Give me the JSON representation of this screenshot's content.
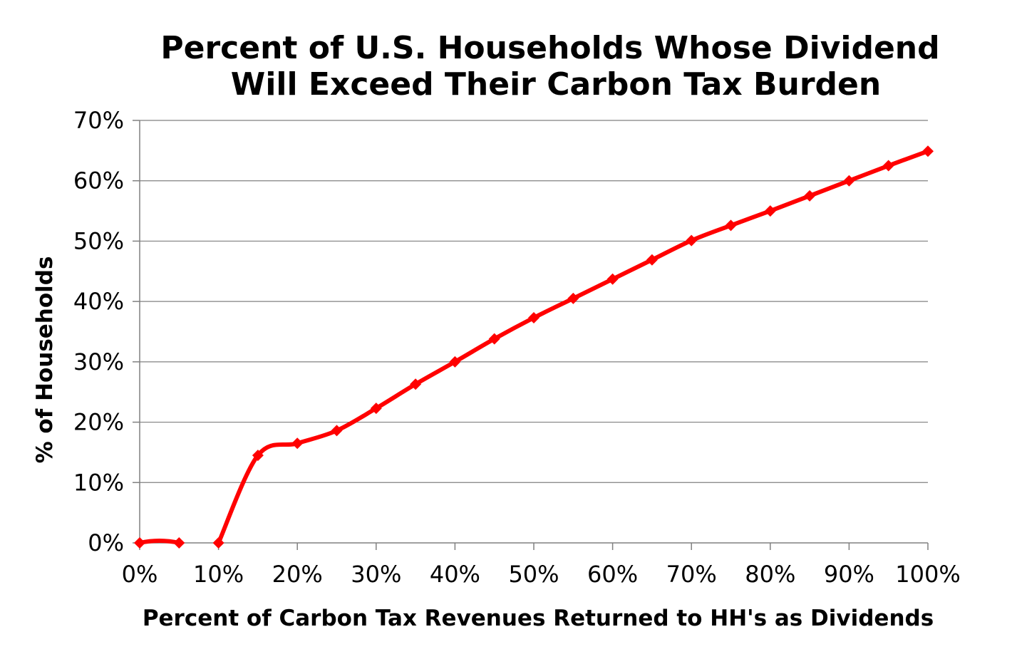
{
  "chart_data": {
    "type": "line",
    "title_lines": [
      "Percent of U.S. Households Whose Dividend",
      "Will Exceed Their Carbon Tax Burden"
    ],
    "xlabel": "Percent of Carbon Tax Revenues Returned to HH's as Dividends",
    "ylabel": "% of Households",
    "x_ticks": [
      "0%",
      "10%",
      "20%",
      "30%",
      "40%",
      "50%",
      "60%",
      "70%",
      "80%",
      "90%",
      "100%"
    ],
    "y_ticks": [
      "0%",
      "10%",
      "20%",
      "30%",
      "40%",
      "50%",
      "60%",
      "70%"
    ],
    "xlim": [
      0,
      100
    ],
    "ylim": [
      0,
      70
    ],
    "grid": "horizontal",
    "legend": "none",
    "series": [
      {
        "color": "#ff0000",
        "marker": "diamond",
        "smooth": true,
        "segments": [
          {
            "x": [
              0,
              5
            ],
            "y": [
              0,
              0
            ]
          },
          {
            "x": [
              10,
              15,
              20,
              25,
              30,
              35,
              40,
              45,
              50,
              55,
              60,
              65,
              70,
              75,
              80,
              85,
              90,
              95,
              100
            ],
            "y": [
              0,
              14.5,
              16.5,
              18.6,
              22.3,
              26.3,
              30.0,
              33.8,
              37.3,
              40.5,
              43.7,
              46.9,
              50.1,
              52.6,
              55.0,
              57.5,
              60.0,
              62.5,
              64.9
            ]
          }
        ]
      }
    ]
  }
}
